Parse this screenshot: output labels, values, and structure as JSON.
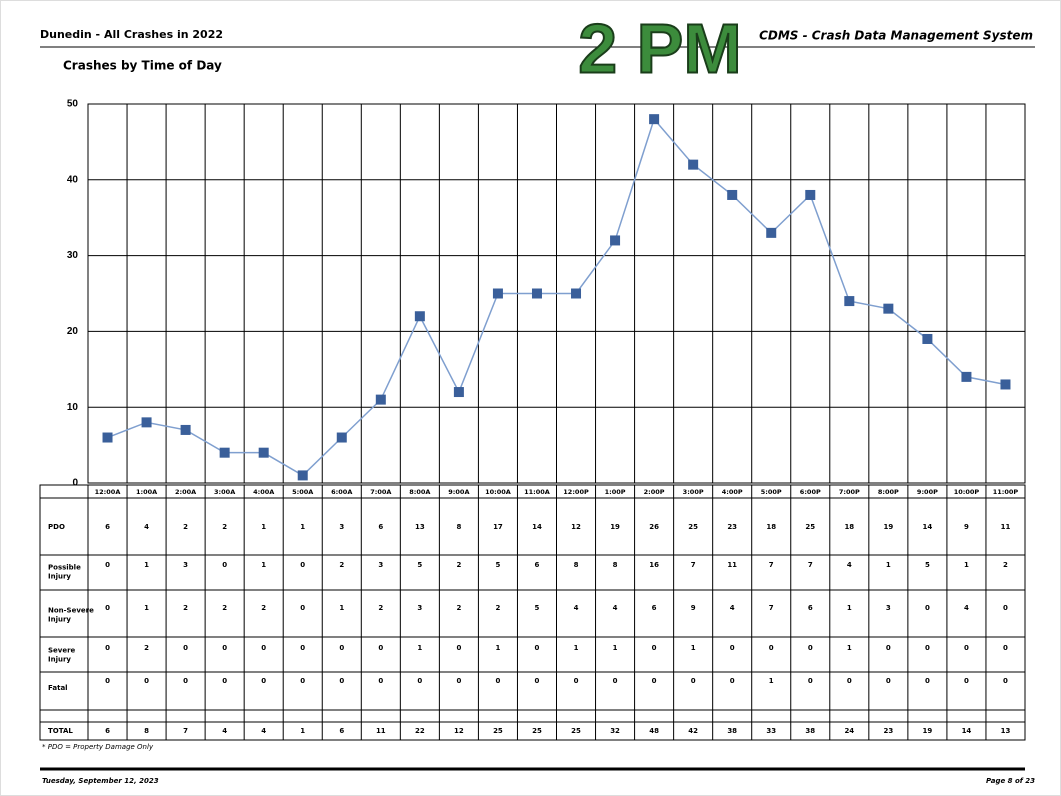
{
  "header": {
    "title": "Dunedin - All Crashes in 2022",
    "system": "CDMS - Crash Data Management System"
  },
  "chart_data": {
    "type": "line",
    "title": "Crashes by Time of Day",
    "annotation": "2 PM",
    "categories": [
      "12:00A",
      "1:00A",
      "2:00A",
      "3:00A",
      "4:00A",
      "5:00A",
      "6:00A",
      "7:00A",
      "8:00A",
      "9:00A",
      "10:00A",
      "11:00A",
      "12:00P",
      "1:00P",
      "2:00P",
      "3:00P",
      "4:00P",
      "5:00P",
      "6:00P",
      "7:00P",
      "8:00P",
      "9:00P",
      "10:00P",
      "11:00P"
    ],
    "values": [
      6,
      8,
      7,
      4,
      4,
      1,
      6,
      11,
      22,
      12,
      25,
      25,
      25,
      32,
      48,
      42,
      38,
      33,
      38,
      24,
      23,
      19,
      14,
      13
    ],
    "color": "#7f9fcf",
    "marker_color": "#3a5f9a",
    "ylim": [
      0,
      50
    ],
    "yticks": [
      0,
      10,
      20,
      30,
      40,
      50
    ],
    "grid": true
  },
  "table": {
    "rows": [
      {
        "label": "PDO",
        "values": [
          6,
          4,
          2,
          2,
          1,
          1,
          3,
          6,
          13,
          8,
          17,
          14,
          12,
          19,
          26,
          25,
          23,
          18,
          25,
          18,
          19,
          14,
          9,
          11
        ]
      },
      {
        "label": "Possible Injury",
        "values": [
          0,
          1,
          3,
          0,
          1,
          0,
          2,
          3,
          5,
          2,
          5,
          6,
          8,
          8,
          16,
          7,
          11,
          7,
          7,
          4,
          1,
          5,
          1,
          2
        ]
      },
      {
        "label": "Non-Severe Injury",
        "values": [
          0,
          1,
          2,
          2,
          2,
          0,
          1,
          2,
          3,
          2,
          2,
          5,
          4,
          4,
          6,
          9,
          4,
          7,
          6,
          1,
          3,
          0,
          4,
          0
        ]
      },
      {
        "label": "Severe Injury",
        "values": [
          0,
          2,
          0,
          0,
          0,
          0,
          0,
          0,
          1,
          0,
          1,
          0,
          1,
          1,
          0,
          1,
          0,
          0,
          0,
          1,
          0,
          0,
          0,
          0
        ]
      },
      {
        "label": "Fatal",
        "values": [
          0,
          0,
          0,
          0,
          0,
          0,
          0,
          0,
          0,
          0,
          0,
          0,
          0,
          0,
          0,
          0,
          0,
          1,
          0,
          0,
          0,
          0,
          0,
          0
        ]
      }
    ],
    "total_label": "TOTAL",
    "footnote": "* PDO = Property Damage Only"
  },
  "footer": {
    "date": "Tuesday, September 12, 2023",
    "page": "Page 8 of 23"
  }
}
